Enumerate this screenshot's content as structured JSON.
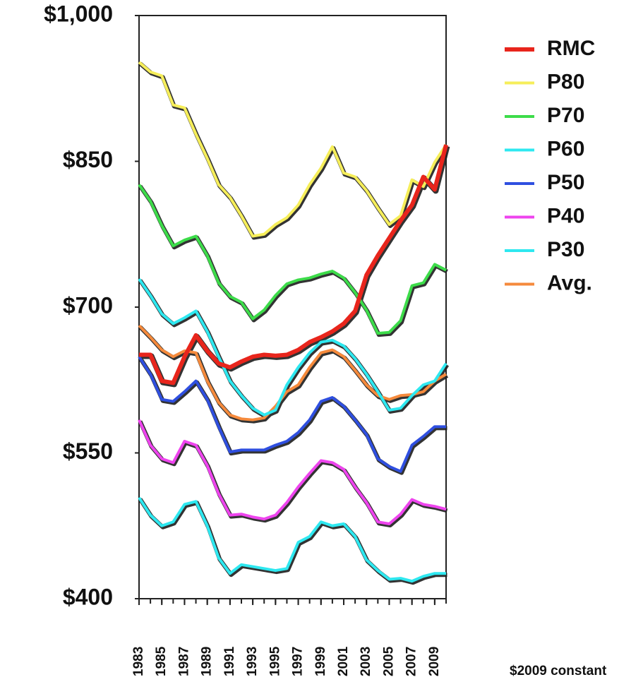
{
  "chart_data": {
    "type": "line",
    "x": [
      1983,
      1984,
      1985,
      1986,
      1987,
      1988,
      1989,
      1990,
      1991,
      1992,
      1993,
      1994,
      1995,
      1996,
      1997,
      1998,
      1999,
      2000,
      2001,
      2002,
      2003,
      2004,
      2005,
      2006,
      2007,
      2008,
      2009,
      2010
    ],
    "xlim": [
      1983,
      2010
    ],
    "xticks": [
      1983,
      1985,
      1987,
      1989,
      1991,
      1993,
      1995,
      1997,
      1999,
      2001,
      2003,
      2005,
      2007,
      2009
    ],
    "ylim": [
      400,
      1000
    ],
    "yticks": [
      {
        "value": 400,
        "label": "$400"
      },
      {
        "value": 550,
        "label": "$550"
      },
      {
        "value": 700,
        "label": "$700"
      },
      {
        "value": 850,
        "label": "$850"
      },
      {
        "value": 1000,
        "label": "$1,000"
      }
    ],
    "footnote": "$2009 constant",
    "series": [
      {
        "name": "RMC",
        "color": "#e8251c",
        "values": [
          651,
          651,
          624,
          622,
          649,
          671,
          655,
          642,
          638,
          644,
          649,
          651,
          650,
          651,
          656,
          664,
          669,
          675,
          683,
          696,
          733,
          753,
          771,
          789,
          805,
          834,
          821,
          867
        ]
      },
      {
        "name": "P80",
        "color": "#f6ee5a",
        "values": [
          952,
          942,
          938,
          908,
          905,
          878,
          853,
          826,
          813,
          794,
          773,
          775,
          785,
          792,
          805,
          826,
          843,
          865,
          838,
          834,
          820,
          802,
          785,
          794,
          831,
          824,
          849,
          867
        ]
      },
      {
        "name": "P70",
        "color": "#3ddc4a",
        "values": [
          826,
          809,
          784,
          763,
          769,
          773,
          753,
          725,
          711,
          705,
          688,
          697,
          712,
          724,
          728,
          730,
          734,
          737,
          730,
          715,
          697,
          673,
          674,
          686,
          722,
          725,
          744,
          738
        ]
      },
      {
        "name": "P60",
        "color": "#2ee8f0",
        "values": [
          729,
          712,
          693,
          683,
          689,
          696,
          675,
          649,
          624,
          609,
          596,
          589,
          594,
          620,
          638,
          653,
          664,
          666,
          660,
          647,
          631,
          613,
          594,
          596,
          609,
          620,
          624,
          642
        ]
      },
      {
        "name": "P50",
        "color": "#2f4fe0",
        "values": [
          649,
          631,
          605,
          603,
          613,
          624,
          605,
          577,
          551,
          553,
          553,
          553,
          558,
          562,
          571,
          584,
          603,
          607,
          598,
          584,
          569,
          544,
          536,
          531,
          558,
          567,
          577,
          577
        ]
      },
      {
        "name": "P40",
        "color": "#ee44ee",
        "values": [
          584,
          558,
          544,
          540,
          562,
          558,
          537,
          508,
          486,
          487,
          484,
          482,
          486,
          499,
          515,
          529,
          542,
          540,
          533,
          515,
          499,
          479,
          477,
          487,
          502,
          497,
          495,
          492
        ]
      },
      {
        "name": "P30",
        "color": "#2ee8f0",
        "values": [
          504,
          486,
          475,
          479,
          497,
          500,
          475,
          442,
          426,
          435,
          433,
          431,
          429,
          431,
          458,
          464,
          479,
          475,
          477,
          464,
          440,
          429,
          420,
          421,
          418,
          423,
          426,
          426
        ]
      },
      {
        "name": "Avg.",
        "color": "#f58a3c",
        "values": [
          681,
          669,
          656,
          649,
          655,
          653,
          624,
          602,
          589,
          585,
          584,
          586,
          598,
          613,
          620,
          638,
          653,
          656,
          649,
          635,
          620,
          609,
          605,
          609,
          610,
          613,
          624,
          631
        ]
      }
    ]
  }
}
